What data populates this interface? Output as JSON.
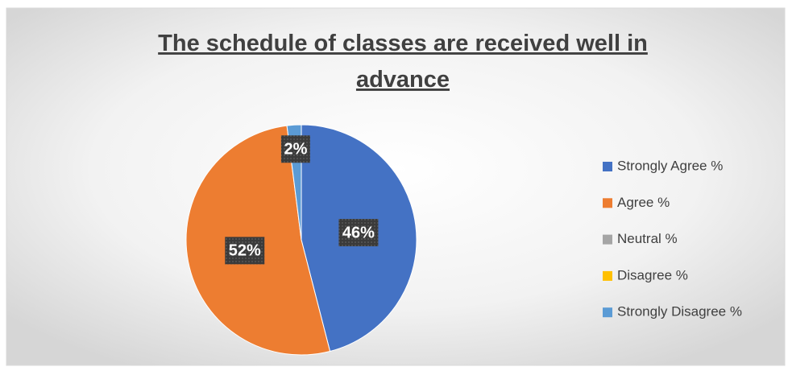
{
  "chart_data": {
    "type": "pie",
    "title": "The schedule of classes are received well in advance",
    "categories": [
      "Strongly Agree %",
      "Agree %",
      "Neutral %",
      "Disagree %",
      "Strongly Disagree %"
    ],
    "values": [
      46,
      52,
      0,
      0,
      2
    ],
    "value_labels": [
      "46%",
      "52%",
      null,
      null,
      "2%"
    ],
    "colors": [
      "#4472c4",
      "#ed7d31",
      "#a5a5a5",
      "#ffc000",
      "#5b9bd5"
    ],
    "legend": "right"
  }
}
